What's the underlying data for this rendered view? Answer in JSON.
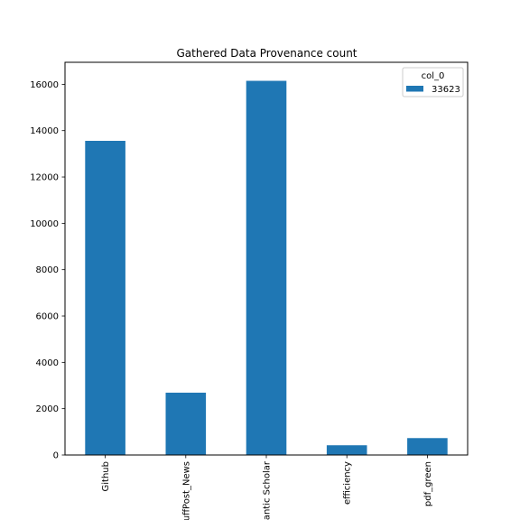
{
  "chart_data": {
    "type": "bar",
    "title": "Gathered Data Provenance count",
    "xlabel": "",
    "ylabel": "",
    "categories": [
      "Github",
      "HuffPost_News",
      "Semantic Scholar",
      "efficiency",
      "pdf_green"
    ],
    "series": [
      {
        "name": "33623",
        "values": [
          13560,
          2690,
          16150,
          420,
          730
        ],
        "color": "#1f77b4"
      }
    ],
    "ylim": [
      0,
      16950
    ],
    "yticks": [
      0,
      2000,
      4000,
      6000,
      8000,
      10000,
      12000,
      14000,
      16000
    ],
    "grid": false,
    "legend": {
      "title": "col_0",
      "placement": "top-right"
    }
  }
}
